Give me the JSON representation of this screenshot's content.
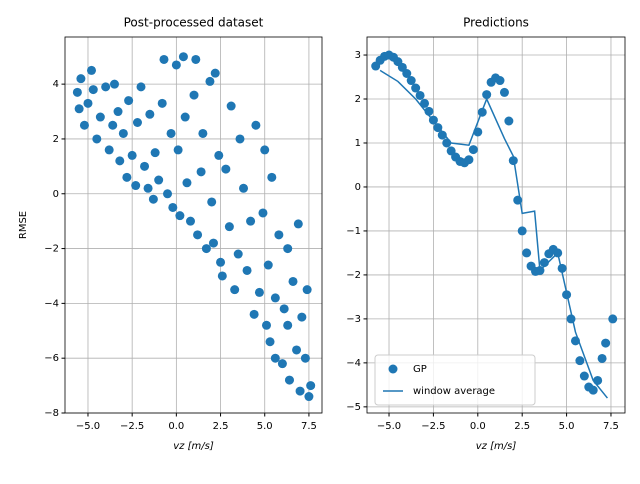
{
  "chart_data": [
    {
      "type": "scatter",
      "title": "Post-processed dataset",
      "xlabel": "vz [m/s]",
      "ylabel": "RMSE",
      "grid": true,
      "xlim": [
        -6.3,
        8.24
      ],
      "ylim": [
        -8.0,
        5.72
      ],
      "xticks": [
        {
          "value": -5,
          "label": "−5.0"
        },
        {
          "value": -2.5,
          "label": "−2.5"
        },
        {
          "value": 0,
          "label": "0.0"
        },
        {
          "value": 2.5,
          "label": "2.5"
        },
        {
          "value": 5,
          "label": "5.0"
        },
        {
          "value": 7.5,
          "label": "7.5"
        }
      ],
      "yticks": [
        4,
        2,
        0,
        {
          "value": -2,
          "label": "−2"
        },
        {
          "value": -4,
          "label": "−4"
        },
        {
          "value": -6,
          "label": "−6"
        },
        {
          "value": -8,
          "label": "−8"
        }
      ],
      "series": [
        {
          "color": "#1f77b4",
          "draw": "scatter",
          "x": [
            -5.6,
            -5.4,
            -5.5,
            -5.2,
            -5.0,
            -4.8,
            -4.7,
            -4.5,
            -4.3,
            -4.0,
            -3.8,
            -3.6,
            -3.5,
            -3.3,
            -3.2,
            -3.0,
            -2.8,
            -2.7,
            -2.5,
            -2.3,
            -2.2,
            -2.0,
            -1.8,
            -1.6,
            -1.5,
            -1.3,
            -1.2,
            -1.0,
            -0.8,
            -0.7,
            -0.5,
            -0.3,
            -0.2,
            0.0,
            0.1,
            0.2,
            0.4,
            0.5,
            0.6,
            0.8,
            1.0,
            1.1,
            1.2,
            1.4,
            1.5,
            1.7,
            1.9,
            2.0,
            2.1,
            2.2,
            2.4,
            2.5,
            2.6,
            2.8,
            3.0,
            3.1,
            3.3,
            3.5,
            3.6,
            3.8,
            4.0,
            4.2,
            4.4,
            4.5,
            4.7,
            4.9,
            5.0,
            5.1,
            5.2,
            5.3,
            5.4,
            5.6,
            5.8,
            6.0,
            6.1,
            6.3,
            6.4,
            6.6,
            6.8,
            6.9,
            7.0,
            7.1,
            7.3,
            7.5,
            7.6,
            7.4,
            5.6,
            6.3
          ],
          "values": [
            3.7,
            4.2,
            3.1,
            2.5,
            3.3,
            4.5,
            3.8,
            2.0,
            2.8,
            3.9,
            1.6,
            2.5,
            4.0,
            3.0,
            1.2,
            2.2,
            0.6,
            3.4,
            1.4,
            0.3,
            2.6,
            3.9,
            1.0,
            0.2,
            2.9,
            -0.2,
            1.5,
            0.5,
            3.3,
            4.9,
            0.0,
            2.2,
            -0.5,
            4.7,
            1.6,
            -0.8,
            5.0,
            2.8,
            0.4,
            -1.0,
            3.6,
            4.9,
            -1.5,
            0.8,
            2.2,
            -2.0,
            4.1,
            -0.3,
            -1.8,
            4.4,
            1.4,
            -2.5,
            -3.0,
            0.9,
            -1.2,
            3.2,
            -3.5,
            -2.2,
            2.0,
            0.2,
            -2.8,
            -1.0,
            -4.4,
            2.5,
            -3.6,
            -0.7,
            1.6,
            -4.8,
            -2.6,
            -5.4,
            0.6,
            -3.8,
            -1.5,
            -6.2,
            -4.2,
            -2.0,
            -6.8,
            -3.2,
            -5.7,
            -1.1,
            -7.2,
            -4.5,
            -6.0,
            -7.4,
            -7.0,
            -3.5,
            -6.0,
            -4.8
          ]
        }
      ]
    },
    {
      "type": "scatter",
      "title": "Predictions",
      "xlabel": "vz [m/s]",
      "grid": true,
      "legend": "lower left",
      "xlim": [
        -6.24,
        8.29
      ],
      "ylim": [
        -5.14,
        3.41
      ],
      "xticks": [
        {
          "value": -5,
          "label": "−5.0"
        },
        {
          "value": -2.5,
          "label": "−2.5"
        },
        {
          "value": 0,
          "label": "0.0"
        },
        {
          "value": 2.5,
          "label": "2.5"
        },
        {
          "value": 5,
          "label": "5.0"
        },
        {
          "value": 7.5,
          "label": "7.5"
        }
      ],
      "yticks": [
        3,
        2,
        1,
        0,
        {
          "value": -1,
          "label": "−1"
        },
        {
          "value": -2,
          "label": "−2"
        },
        {
          "value": -3,
          "label": "−3"
        },
        {
          "value": -4,
          "label": "−4"
        },
        {
          "value": -5,
          "label": "−5"
        }
      ],
      "series": [
        {
          "name": "GP",
          "color": "#1f77b4",
          "draw": "scatter",
          "x": [
            -5.75,
            -5.5,
            -5.25,
            -5.0,
            -4.75,
            -4.5,
            -4.25,
            -4.0,
            -3.75,
            -3.5,
            -3.25,
            -3.0,
            -2.75,
            -2.5,
            -2.25,
            -2.0,
            -1.75,
            -1.5,
            -1.25,
            -1.0,
            -0.75,
            -0.5,
            -0.25,
            0.0,
            0.25,
            0.5,
            0.75,
            1.0,
            1.25,
            1.5,
            1.75,
            2.0,
            2.25,
            2.5,
            2.75,
            3.0,
            3.25,
            3.5,
            3.75,
            4.0,
            4.25,
            4.5,
            4.75,
            5.0,
            5.25,
            5.5,
            5.75,
            6.0,
            6.25,
            6.5,
            6.75,
            7.0,
            7.2,
            7.6
          ],
          "values": [
            2.75,
            2.88,
            2.97,
            3.0,
            2.95,
            2.85,
            2.72,
            2.58,
            2.42,
            2.25,
            2.08,
            1.9,
            1.72,
            1.52,
            1.35,
            1.18,
            1.0,
            0.82,
            0.68,
            0.58,
            0.55,
            0.62,
            0.85,
            1.25,
            1.7,
            2.1,
            2.38,
            2.48,
            2.42,
            2.15,
            1.5,
            0.6,
            -0.3,
            -1.0,
            -1.5,
            -1.8,
            -1.92,
            -1.9,
            -1.72,
            -1.52,
            -1.42,
            -1.5,
            -1.85,
            -2.45,
            -3.0,
            -3.5,
            -3.95,
            -4.3,
            -4.55,
            -4.62,
            -4.4,
            -3.9,
            -3.55,
            -3.0
          ]
        },
        {
          "name": "window average",
          "color": "#1f77b4",
          "draw": "line",
          "x": [
            -5.5,
            -4.5,
            -3.5,
            -2.5,
            -1.5,
            -0.5,
            0.5,
            1.5,
            2.0,
            2.5,
            3.2,
            3.5,
            4.5,
            5.5,
            6.5,
            7.3
          ],
          "values": [
            2.65,
            2.4,
            2.0,
            1.5,
            1.0,
            0.95,
            2.0,
            1.1,
            0.7,
            -0.6,
            -0.55,
            -1.9,
            -1.5,
            -3.3,
            -4.4,
            -4.8
          ]
        }
      ]
    }
  ]
}
